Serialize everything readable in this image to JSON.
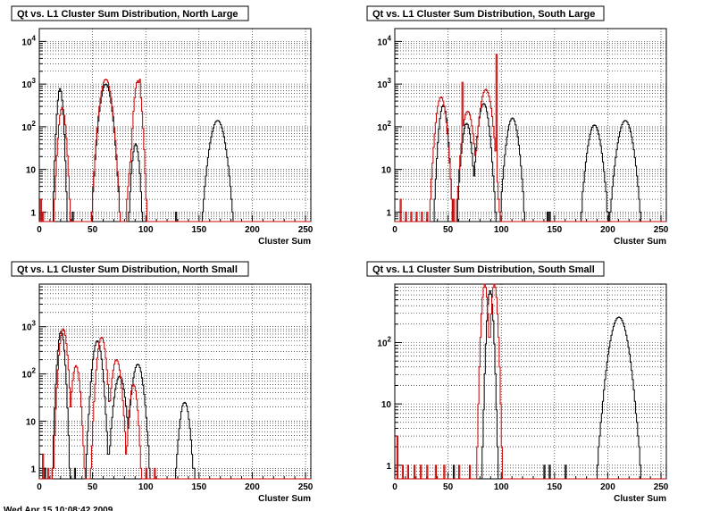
{
  "page": {
    "footer_text": "Wed Apr 15 10:08:42 2009"
  },
  "colors": {
    "series_black": "#000000",
    "series_red": "#cc0000",
    "grid": "#000000",
    "background": "#ffffff"
  },
  "chart_data": [
    {
      "type": "histogram",
      "title": "Qt vs. L1 Cluster Sum Distribution, North Large",
      "xlabel": "Cluster Sum",
      "ylabel": "",
      "xlim": [
        0,
        255
      ],
      "ylim": [
        0.6,
        20000
      ],
      "yscale": "log",
      "grid": true,
      "x_ticks": [
        0,
        50,
        100,
        150,
        200,
        250
      ],
      "y_ticks": [
        {
          "v": 1,
          "label": "1"
        },
        {
          "v": 10,
          "label": "10"
        },
        {
          "v": 100,
          "label": "10^2"
        },
        {
          "v": 1000,
          "label": "10^3"
        },
        {
          "v": 10000,
          "label": "10^4"
        }
      ],
      "series": [
        {
          "color": "black",
          "peaks": [
            {
              "mu": 19,
              "sigma": 1.8,
              "amp": 780
            },
            {
              "mu": 62,
              "sigma": 3.5,
              "amp": 1000
            },
            {
              "mu": 90,
              "sigma": 2.2,
              "amp": 40
            },
            {
              "mu": 167,
              "sigma": 4.5,
              "amp": 140
            }
          ],
          "spikes": [
            {
              "x": 31,
              "y": 1
            },
            {
              "x": 170,
              "y": 3
            },
            {
              "x": 128,
              "y": 1
            }
          ]
        },
        {
          "color": "red",
          "peaks": [
            {
              "mu": 21,
              "sigma": 2.2,
              "amp": 280
            },
            {
              "mu": 62,
              "sigma": 3.5,
              "amp": 1300
            },
            {
              "mu": 92,
              "sigma": 2.2,
              "amp": 1200
            },
            {
              "mu": 88,
              "sigma": 2.5,
              "amp": 30
            }
          ],
          "spikes": [
            {
              "x": 1,
              "y": 2
            },
            {
              "x": 3,
              "y": 1
            },
            {
              "x": 94,
              "y": 1300
            }
          ]
        }
      ]
    },
    {
      "type": "histogram",
      "title": "Qt vs. L1 Cluster Sum Distribution, South Large",
      "xlabel": "Cluster Sum",
      "ylabel": "",
      "xlim": [
        0,
        255
      ],
      "ylim": [
        0.6,
        20000
      ],
      "yscale": "log",
      "grid": true,
      "x_ticks": [
        0,
        50,
        100,
        150,
        200,
        250
      ],
      "y_ticks": [
        {
          "v": 1,
          "label": "1"
        },
        {
          "v": 10,
          "label": "10"
        },
        {
          "v": 100,
          "label": "10^2"
        },
        {
          "v": 1000,
          "label": "10^3"
        },
        {
          "v": 10000,
          "label": "10^4"
        }
      ],
      "series": [
        {
          "color": "black",
          "peaks": [
            {
              "mu": 45,
              "sigma": 2.5,
              "amp": 320
            },
            {
              "mu": 67,
              "sigma": 2.8,
              "amp": 120
            },
            {
              "mu": 83,
              "sigma": 3.2,
              "amp": 350
            },
            {
              "mu": 110,
              "sigma": 3.5,
              "amp": 160
            },
            {
              "mu": 187,
              "sigma": 4.0,
              "amp": 110
            },
            {
              "mu": 216,
              "sigma": 4.5,
              "amp": 140
            }
          ],
          "spikes": [
            {
              "x": 143,
              "y": 1
            },
            {
              "x": 145,
              "y": 1
            },
            {
              "x": 193,
              "y": 2
            },
            {
              "x": 200,
              "y": 1
            }
          ]
        },
        {
          "color": "red",
          "peaks": [
            {
              "mu": 43,
              "sigma": 3.0,
              "amp": 500
            },
            {
              "mu": 68,
              "sigma": 3.2,
              "amp": 230
            },
            {
              "mu": 85,
              "sigma": 3.5,
              "amp": 750
            }
          ],
          "spikes": [
            {
              "x": 5,
              "y": 2
            },
            {
              "x": 10,
              "y": 1
            },
            {
              "x": 15,
              "y": 1
            },
            {
              "x": 20,
              "y": 1
            },
            {
              "x": 25,
              "y": 1
            },
            {
              "x": 30,
              "y": 1
            },
            {
              "x": 55,
              "y": 2
            },
            {
              "x": 60,
              "y": 1
            },
            {
              "x": 63,
              "y": 1100
            },
            {
              "x": 95,
              "y": 5000
            }
          ]
        }
      ]
    },
    {
      "type": "histogram",
      "title": "Qt vs. L1 Cluster Sum Distribution, North Small",
      "xlabel": "Cluster Sum",
      "ylabel": "",
      "xlim": [
        0,
        255
      ],
      "ylim": [
        0.6,
        8000
      ],
      "yscale": "log",
      "grid": true,
      "x_ticks": [
        0,
        50,
        100,
        150,
        200,
        250
      ],
      "y_ticks": [
        {
          "v": 1,
          "label": "1"
        },
        {
          "v": 10,
          "label": "10"
        },
        {
          "v": 100,
          "label": "10^2"
        },
        {
          "v": 1000,
          "label": "10^3"
        }
      ],
      "series": [
        {
          "color": "black",
          "peaks": [
            {
              "mu": 20,
              "sigma": 2.2,
              "amp": 800
            },
            {
              "mu": 54,
              "sigma": 3.0,
              "amp": 500
            },
            {
              "mu": 75,
              "sigma": 3.5,
              "amp": 90
            },
            {
              "mu": 92,
              "sigma": 3.5,
              "amp": 160
            },
            {
              "mu": 136,
              "sigma": 3.2,
              "amp": 25
            }
          ],
          "spikes": [
            {
              "x": 5,
              "y": 1
            },
            {
              "x": 145,
              "y": 1
            },
            {
              "x": 33,
              "y": 1
            }
          ]
        },
        {
          "color": "red",
          "peaks": [
            {
              "mu": 22,
              "sigma": 2.5,
              "amp": 900
            },
            {
              "mu": 34,
              "sigma": 2.5,
              "amp": 150
            },
            {
              "mu": 58,
              "sigma": 2.8,
              "amp": 600
            },
            {
              "mu": 72,
              "sigma": 3.0,
              "amp": 200
            },
            {
              "mu": 88,
              "sigma": 2.5,
              "amp": 60
            }
          ],
          "spikes": [
            {
              "x": 3,
              "y": 2
            },
            {
              "x": 8,
              "y": 1
            },
            {
              "x": 12,
              "y": 1
            },
            {
              "x": 100,
              "y": 1
            },
            {
              "x": 108,
              "y": 1
            }
          ]
        }
      ]
    },
    {
      "type": "histogram",
      "title": "Qt vs. L1 Cluster Sum Distribution, South Small",
      "xlabel": "Cluster Sum",
      "ylabel": "",
      "xlim": [
        0,
        255
      ],
      "ylim": [
        0.6,
        900
      ],
      "yscale": "log",
      "grid": true,
      "x_ticks": [
        0,
        50,
        100,
        150,
        200,
        250
      ],
      "y_ticks": [
        {
          "v": 1,
          "label": "1"
        },
        {
          "v": 10,
          "label": "10"
        },
        {
          "v": 100,
          "label": "10^2"
        }
      ],
      "series": [
        {
          "color": "black",
          "peaks": [
            {
              "mu": 89,
              "sigma": 2.0,
              "amp": 700
            },
            {
              "mu": 210,
              "sigma": 6.0,
              "amp": 260
            }
          ],
          "spikes": [
            {
              "x": 140,
              "y": 1
            },
            {
              "x": 145,
              "y": 1
            },
            {
              "x": 160,
              "y": 1
            },
            {
              "x": 55,
              "y": 1
            }
          ]
        },
        {
          "color": "red",
          "peaks": [
            {
              "mu": 84,
              "sigma": 2.0,
              "amp": 900
            },
            {
              "mu": 93,
              "sigma": 2.0,
              "amp": 900
            }
          ],
          "spikes": [
            {
              "x": 2,
              "y": 3
            },
            {
              "x": 7,
              "y": 1
            },
            {
              "x": 12,
              "y": 1
            },
            {
              "x": 18,
              "y": 1
            },
            {
              "x": 24,
              "y": 1
            },
            {
              "x": 30,
              "y": 1
            },
            {
              "x": 38,
              "y": 1
            },
            {
              "x": 46,
              "y": 1
            },
            {
              "x": 60,
              "y": 1
            },
            {
              "x": 70,
              "y": 1
            }
          ]
        }
      ]
    }
  ]
}
